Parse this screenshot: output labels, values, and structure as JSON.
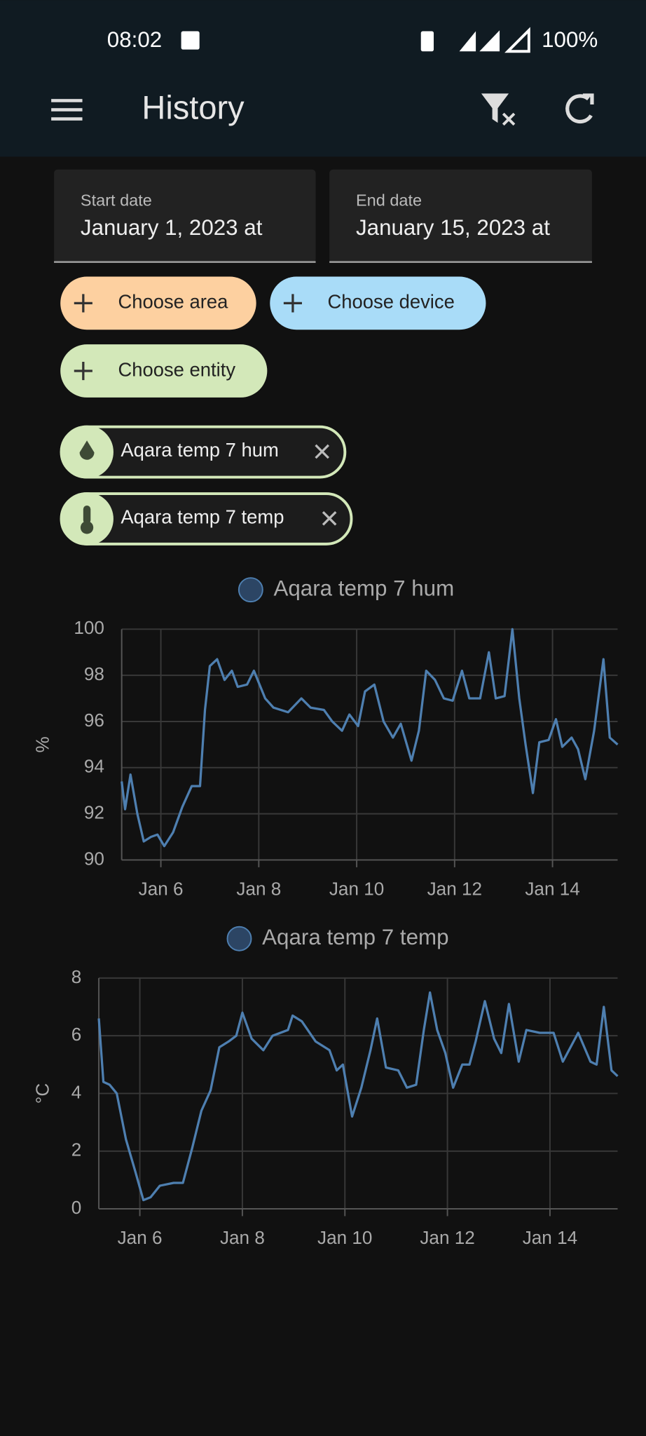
{
  "status_bar": {
    "time": "08:02",
    "battery": "100%"
  },
  "app_bar": {
    "title": "History"
  },
  "date_fields": [
    {
      "label": "Start date",
      "value": "January 1, 2023 at"
    },
    {
      "label": "End date",
      "value": "January 15, 2023 at"
    }
  ],
  "chips": [
    "Choose area",
    "Choose device",
    "Choose entity"
  ],
  "selected": [
    "Aqara temp 7 hum",
    "Aqara temp 7 temp"
  ],
  "chart_data": [
    {
      "type": "line",
      "y_label": "%",
      "x": [
        5.2,
        5.27,
        5.38,
        5.52,
        5.65,
        5.8,
        5.93,
        6.07,
        6.25,
        6.44,
        6.63,
        6.8,
        6.9,
        7.0,
        7.15,
        7.3,
        7.45,
        7.57,
        7.76,
        7.9,
        8.13,
        8.3,
        8.6,
        8.87,
        9.06,
        9.33,
        9.5,
        9.7,
        9.85,
        10.03,
        10.17,
        10.36,
        10.55,
        10.74,
        10.9,
        11.12,
        11.27,
        11.42,
        11.6,
        11.78,
        11.96,
        12.15,
        12.3,
        12.52,
        12.7,
        12.84,
        13.02,
        13.18,
        13.32,
        13.45,
        13.6,
        13.73,
        13.92,
        14.07,
        14.2,
        14.39,
        14.52,
        14.67,
        14.85,
        15.04,
        15.17,
        15.33
      ],
      "series": [
        {
          "name": "Aqara temp 7 hum",
          "color": "#4e7fb0",
          "values": [
            93.4,
            92.2,
            93.7,
            92.0,
            90.8,
            91.0,
            91.1,
            90.6,
            91.2,
            92.3,
            93.2,
            93.2,
            96.5,
            98.4,
            98.7,
            97.8,
            98.2,
            97.5,
            97.6,
            98.2,
            97.0,
            96.6,
            96.4,
            97.0,
            96.6,
            96.5,
            96.0,
            95.6,
            96.3,
            95.8,
            97.3,
            97.6,
            96.0,
            95.3,
            95.9,
            94.3,
            95.6,
            98.2,
            97.8,
            97.0,
            96.9,
            98.2,
            97.0,
            97.0,
            99.0,
            97.0,
            97.1,
            100.0,
            97.0,
            95.0,
            92.9,
            95.1,
            95.2,
            96.1,
            94.9,
            95.3,
            94.8,
            93.5,
            95.6,
            98.7,
            95.3,
            95.0
          ]
        }
      ],
      "xlim": [
        5.2,
        15.33
      ],
      "ylim": [
        90,
        100
      ],
      "xticks": [
        {
          "value": 6,
          "label": "Jan 6"
        },
        {
          "value": 8,
          "label": "Jan 8"
        },
        {
          "value": 10,
          "label": "Jan 10"
        },
        {
          "value": 12,
          "label": "Jan 12"
        },
        {
          "value": 14,
          "label": "Jan 14"
        }
      ],
      "yticks": [
        90,
        92,
        94,
        96,
        98,
        100
      ],
      "grid": true
    },
    {
      "type": "line",
      "y_label": "°C",
      "x": [
        5.2,
        5.29,
        5.41,
        5.55,
        5.73,
        5.91,
        6.07,
        6.21,
        6.39,
        6.66,
        6.84,
        7.02,
        7.2,
        7.38,
        7.55,
        7.73,
        7.88,
        8.0,
        8.18,
        8.41,
        8.59,
        8.89,
        8.98,
        9.16,
        9.43,
        9.7,
        9.84,
        9.96,
        10.14,
        10.32,
        10.5,
        10.63,
        10.8,
        11.04,
        11.21,
        11.39,
        11.54,
        11.66,
        11.8,
        11.96,
        12.11,
        12.29,
        12.43,
        12.55,
        12.73,
        12.91,
        13.05,
        13.2,
        13.39,
        13.54,
        13.8,
        14.07,
        14.25,
        14.55,
        14.79,
        14.91,
        15.05,
        15.2,
        15.32
      ],
      "series": [
        {
          "name": "Aqara temp 7 temp",
          "color": "#4e7fb0",
          "values": [
            6.6,
            4.4,
            4.3,
            4.0,
            2.4,
            1.3,
            0.3,
            0.4,
            0.8,
            0.9,
            0.9,
            2.1,
            3.4,
            4.1,
            5.6,
            5.8,
            6.0,
            6.8,
            5.9,
            5.5,
            6.0,
            6.2,
            6.7,
            6.5,
            5.8,
            5.5,
            4.8,
            5.0,
            3.2,
            4.2,
            5.5,
            6.6,
            4.9,
            4.8,
            4.2,
            4.3,
            6.2,
            7.5,
            6.2,
            5.4,
            4.2,
            5.0,
            5.0,
            5.8,
            7.2,
            5.9,
            5.4,
            7.1,
            5.1,
            6.2,
            6.1,
            6.1,
            5.1,
            6.1,
            5.1,
            5.0,
            7.0,
            4.8,
            4.6
          ]
        }
      ],
      "xlim": [
        5.2,
        15.32
      ],
      "ylim": [
        0,
        8
      ],
      "xticks": [
        {
          "value": 6,
          "label": "Jan 6"
        },
        {
          "value": 8,
          "label": "Jan 8"
        },
        {
          "value": 10,
          "label": "Jan 10"
        },
        {
          "value": 12,
          "label": "Jan 12"
        },
        {
          "value": 14,
          "label": "Jan 14"
        }
      ],
      "yticks": [
        0,
        2,
        4,
        6,
        8
      ],
      "grid": true
    }
  ]
}
